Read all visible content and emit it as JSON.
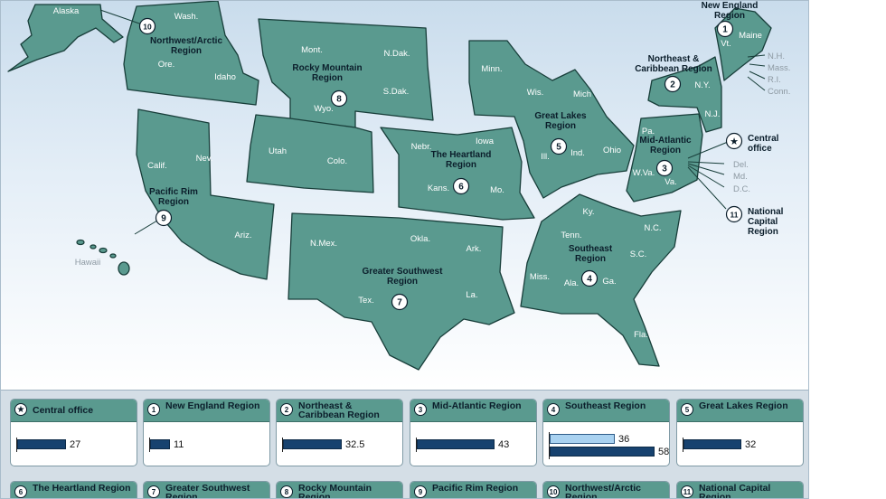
{
  "map": {
    "states": [
      {
        "abbr": "Alaska"
      },
      {
        "abbr": "Wash."
      },
      {
        "abbr": "Ore."
      },
      {
        "abbr": "Idaho"
      },
      {
        "abbr": "Mont."
      },
      {
        "abbr": "N.Dak."
      },
      {
        "abbr": "S.Dak."
      },
      {
        "abbr": "Wyo."
      },
      {
        "abbr": "Minn."
      },
      {
        "abbr": "Wis."
      },
      {
        "abbr": "Mich"
      },
      {
        "abbr": "Iowa"
      },
      {
        "abbr": "Nebr."
      },
      {
        "abbr": "Kans."
      },
      {
        "abbr": "Mo."
      },
      {
        "abbr": "Ill."
      },
      {
        "abbr": "Ind."
      },
      {
        "abbr": "Ohio"
      },
      {
        "abbr": "Utah"
      },
      {
        "abbr": "Colo."
      },
      {
        "abbr": "Calif."
      },
      {
        "abbr": "Nev."
      },
      {
        "abbr": "Ariz."
      },
      {
        "abbr": "N.Mex."
      },
      {
        "abbr": "Okla."
      },
      {
        "abbr": "Tex."
      },
      {
        "abbr": "Ark."
      },
      {
        "abbr": "La."
      },
      {
        "abbr": "Ky."
      },
      {
        "abbr": "Tenn."
      },
      {
        "abbr": "N.C."
      },
      {
        "abbr": "S.C."
      },
      {
        "abbr": "Miss."
      },
      {
        "abbr": "Ala."
      },
      {
        "abbr": "Ga."
      },
      {
        "abbr": "Fla."
      },
      {
        "abbr": "Pa."
      },
      {
        "abbr": "W.Va."
      },
      {
        "abbr": "Va."
      },
      {
        "abbr": "N.Y."
      },
      {
        "abbr": "Vt."
      },
      {
        "abbr": "Maine"
      },
      {
        "abbr": "N.J."
      },
      {
        "abbr": "Hawaii"
      }
    ],
    "external_labels": [
      "N.H.",
      "Mass.",
      "R.I.",
      "Conn.",
      "Del.",
      "Md.",
      "D.C."
    ],
    "regions": [
      {
        "num": "1",
        "name": "New England\nRegion"
      },
      {
        "num": "2",
        "name": "Northeast &\nCaribbean Region"
      },
      {
        "num": "3",
        "name": "Mid-Atlantic\nRegion"
      },
      {
        "num": "4",
        "name": "Southeast\nRegion"
      },
      {
        "num": "5",
        "name": "Great Lakes\nRegion"
      },
      {
        "num": "6",
        "name": "The Heartland\nRegion"
      },
      {
        "num": "7",
        "name": "Greater Southwest\nRegion"
      },
      {
        "num": "8",
        "name": "Rocky Mountain\nRegion"
      },
      {
        "num": "9",
        "name": "Pacific Rim\nRegion"
      },
      {
        "num": "10",
        "name": "Northwest/Arctic\nRegion"
      },
      {
        "num": "11",
        "name": "National\nCapital\nRegion"
      }
    ],
    "central_office": "Central\noffice"
  },
  "legend": {
    "max_value": 60,
    "cards": [
      {
        "badge": "★",
        "title": "Central office",
        "bars": [
          {
            "value": 27,
            "label": "27",
            "style": "dark"
          }
        ]
      },
      {
        "badge": "1",
        "title": "New England Region",
        "bars": [
          {
            "value": 11,
            "label": "11",
            "style": "dark"
          }
        ]
      },
      {
        "badge": "2",
        "title": "Northeast & Caribbean Region",
        "bars": [
          {
            "value": 32.5,
            "label": "32.5",
            "style": "dark"
          }
        ]
      },
      {
        "badge": "3",
        "title": "Mid-Atlantic Region",
        "bars": [
          {
            "value": 43,
            "label": "43",
            "style": "dark"
          }
        ]
      },
      {
        "badge": "4",
        "title": "Southeast Region",
        "bars": [
          {
            "value": 36,
            "label": "36",
            "style": "light"
          },
          {
            "value": 58,
            "label": "58",
            "style": "dark"
          }
        ]
      },
      {
        "badge": "5",
        "title": "Great Lakes Region",
        "bars": [
          {
            "value": 32,
            "label": "32",
            "style": "dark"
          }
        ]
      },
      {
        "badge": "6",
        "title": "The Heartland Region",
        "bars": []
      },
      {
        "badge": "7",
        "title": "Greater Southwest Region",
        "bars": []
      },
      {
        "badge": "8",
        "title": "Rocky Mountain Region",
        "bars": []
      },
      {
        "badge": "9",
        "title": "Pacific Rim Region",
        "bars": []
      },
      {
        "badge": "10",
        "title": "Northwest/Arctic Region",
        "bars": []
      },
      {
        "badge": "11",
        "title": "National Capital Region",
        "bars": []
      }
    ]
  },
  "colors": {
    "land": "#5a9a8f",
    "land_stroke": "#183e3a",
    "bar_dark": "#17426f",
    "bar_light": "#a9d2f1"
  }
}
